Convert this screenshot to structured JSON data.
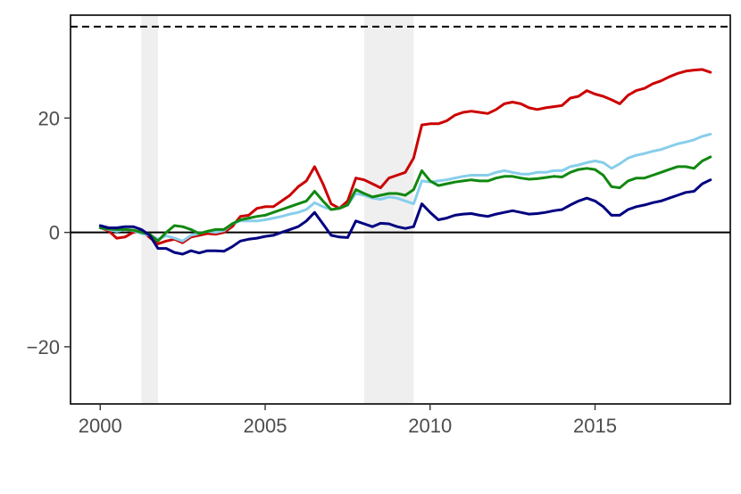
{
  "chart_data": {
    "type": "line",
    "title": "",
    "xlabel": "",
    "ylabel": "",
    "xlim": [
      1999.1,
      2019.1
    ],
    "ylim": [
      -30,
      38
    ],
    "x_ticks": [
      2000,
      2005,
      2010,
      2015
    ],
    "x_tick_labels": [
      "2000",
      "2005",
      "2010",
      "2015"
    ],
    "y_ticks": [
      -20,
      0,
      20
    ],
    "y_tick_labels": [
      "−20",
      "0",
      "20"
    ],
    "grid": false,
    "legend": "none",
    "recession_bands": [
      {
        "start": 2001.25,
        "end": 2001.75
      },
      {
        "start": 2008.0,
        "end": 2009.5
      }
    ],
    "reference_lines": [
      {
        "y": 0,
        "style": "solid",
        "color": "#000000"
      },
      {
        "y": 36,
        "style": "dashed",
        "color": "#000000"
      }
    ],
    "x": [
      2000.0,
      2000.25,
      2000.5,
      2000.75,
      2001.0,
      2001.25,
      2001.5,
      2001.75,
      2002.0,
      2002.25,
      2002.5,
      2002.75,
      2003.0,
      2003.25,
      2003.5,
      2003.75,
      2004.0,
      2004.25,
      2004.5,
      2004.75,
      2005.0,
      2005.25,
      2005.5,
      2005.75,
      2006.0,
      2006.25,
      2006.5,
      2006.75,
      2007.0,
      2007.25,
      2007.5,
      2007.75,
      2008.0,
      2008.25,
      2008.5,
      2008.75,
      2009.0,
      2009.25,
      2009.5,
      2009.75,
      2010.0,
      2010.25,
      2010.5,
      2010.75,
      2011.0,
      2011.25,
      2011.5,
      2011.75,
      2012.0,
      2012.25,
      2012.5,
      2012.75,
      2013.0,
      2013.25,
      2013.5,
      2013.75,
      2014.0,
      2014.25,
      2014.5,
      2014.75,
      2015.0,
      2015.25,
      2015.5,
      2015.75,
      2016.0,
      2016.25,
      2016.5,
      2016.75,
      2017.0,
      2017.25,
      2017.5,
      2017.75,
      2018.0,
      2018.25,
      2018.5
    ],
    "series": [
      {
        "color": "#cc0000",
        "values": [
          0.8,
          0.3,
          -1.0,
          -0.8,
          0.0,
          0.3,
          -0.9,
          -2.0,
          -1.5,
          -1.2,
          -1.8,
          -0.8,
          -0.5,
          -0.2,
          -0.3,
          0.0,
          1.0,
          2.8,
          3.0,
          4.2,
          4.5,
          4.5,
          5.5,
          6.5,
          8.0,
          9.0,
          11.5,
          8.5,
          5.0,
          4.2,
          5.5,
          9.5,
          9.2,
          8.5,
          7.8,
          9.5,
          10.0,
          10.5,
          13.0,
          18.8,
          19.0,
          19.0,
          19.5,
          20.5,
          21.0,
          21.2,
          21.0,
          20.8,
          21.5,
          22.5,
          22.8,
          22.5,
          21.8,
          21.5,
          21.8,
          22.0,
          22.2,
          23.5,
          23.8,
          24.8,
          24.2,
          23.8,
          23.2,
          22.5,
          24.0,
          24.8,
          25.2,
          26.0,
          26.5,
          27.2,
          27.8,
          28.2,
          28.4,
          28.5,
          28.0
        ]
      },
      {
        "color": "#87ceeb",
        "values": [
          0.8,
          0.5,
          0.2,
          0.5,
          0.3,
          -0.2,
          -0.5,
          -1.2,
          -0.6,
          -1.0,
          -1.5,
          -0.5,
          -0.2,
          0.2,
          0.0,
          0.3,
          1.5,
          2.0,
          2.0,
          2.0,
          2.2,
          2.5,
          2.8,
          3.2,
          3.5,
          4.0,
          5.2,
          4.5,
          4.0,
          4.2,
          4.8,
          6.8,
          6.5,
          6.0,
          5.8,
          6.2,
          6.0,
          5.5,
          5.0,
          9.0,
          8.8,
          9.0,
          9.2,
          9.5,
          9.8,
          10.0,
          10.0,
          10.0,
          10.5,
          10.8,
          10.5,
          10.2,
          10.2,
          10.5,
          10.5,
          10.8,
          10.8,
          11.5,
          11.8,
          12.2,
          12.5,
          12.2,
          11.2,
          12.0,
          13.0,
          13.5,
          13.8,
          14.2,
          14.5,
          15.0,
          15.5,
          15.8,
          16.2,
          16.8,
          17.2
        ]
      },
      {
        "color": "#118811",
        "values": [
          0.8,
          0.6,
          0.5,
          0.5,
          0.4,
          0.0,
          -0.3,
          -1.5,
          0.0,
          1.2,
          1.0,
          0.5,
          -0.2,
          0.2,
          0.5,
          0.5,
          1.5,
          2.2,
          2.5,
          2.8,
          3.0,
          3.5,
          4.0,
          4.5,
          5.0,
          5.5,
          7.2,
          5.5,
          4.0,
          4.2,
          4.8,
          7.5,
          6.8,
          6.2,
          6.5,
          6.8,
          6.8,
          6.5,
          7.5,
          10.8,
          9.0,
          8.2,
          8.5,
          8.8,
          9.0,
          9.2,
          9.0,
          9.0,
          9.5,
          9.8,
          9.8,
          9.5,
          9.3,
          9.4,
          9.6,
          9.8,
          9.7,
          10.5,
          11.0,
          11.2,
          11.0,
          10.0,
          8.0,
          7.8,
          9.0,
          9.5,
          9.5,
          10.0,
          10.5,
          11.0,
          11.5,
          11.5,
          11.2,
          12.5,
          13.2
        ]
      },
      {
        "color": "#000080",
        "values": [
          1.2,
          0.8,
          0.8,
          1.0,
          1.0,
          0.5,
          -0.5,
          -2.8,
          -2.8,
          -3.5,
          -3.8,
          -3.2,
          -3.6,
          -3.2,
          -3.2,
          -3.3,
          -2.5,
          -1.5,
          -1.2,
          -1.0,
          -0.7,
          -0.5,
          0.0,
          0.5,
          1.0,
          2.0,
          3.5,
          1.5,
          -0.5,
          -0.8,
          -0.9,
          2.0,
          1.5,
          1.0,
          1.6,
          1.5,
          1.0,
          0.7,
          1.0,
          5.0,
          3.5,
          2.2,
          2.5,
          3.0,
          3.2,
          3.3,
          3.0,
          2.8,
          3.2,
          3.5,
          3.8,
          3.5,
          3.2,
          3.3,
          3.5,
          3.8,
          4.0,
          4.8,
          5.5,
          6.0,
          5.5,
          4.5,
          3.0,
          3.0,
          4.0,
          4.5,
          4.8,
          5.2,
          5.5,
          6.0,
          6.5,
          7.0,
          7.2,
          8.5,
          9.2
        ]
      }
    ]
  }
}
